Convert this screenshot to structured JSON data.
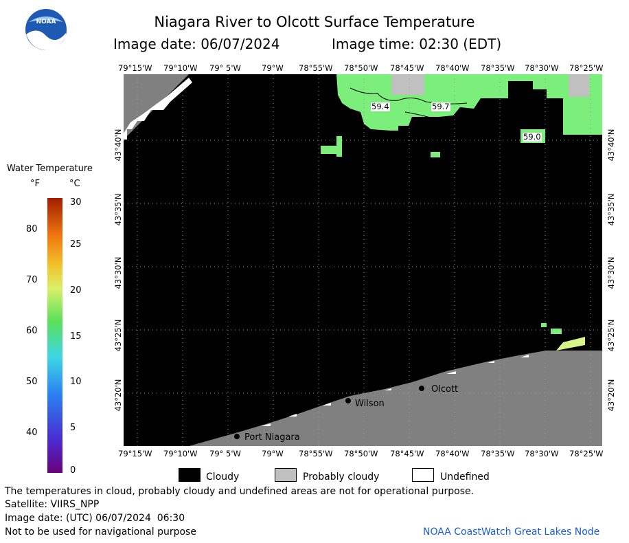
{
  "header": {
    "title": "Niagara River to Olcott Surface Temperature",
    "image_date_label": "Image date: 06/07/2024",
    "image_time_label": "Image time: 02:30 (EDT)"
  },
  "logo": {
    "text": "NOAA"
  },
  "map": {
    "lon_labels": [
      "79°15'W",
      "79°10'W",
      "79° 5'W",
      "79°W",
      "78°55'W",
      "78°50'W",
      "78°45'W",
      "78°40'W",
      "78°35'W",
      "78°30'W",
      "78°25'W"
    ],
    "lat_labels": [
      "43°40'N",
      "43°35'N",
      "43°30'N",
      "43°25'N",
      "43°20'N"
    ],
    "places": [
      "Port Niagara",
      "Wilson",
      "Olcott"
    ],
    "contour_labels": [
      "59.4",
      "59.7",
      "59.0"
    ],
    "colors": {
      "cloudy": "#000000",
      "land": "#808080",
      "probably_cloudy": "#c0c0c0",
      "warm_water": "#7cee7c",
      "yellow_water": "#d8f58a"
    }
  },
  "legend": {
    "title": "Water Temperature",
    "unit_f": "°F",
    "unit_c": "°C",
    "f_ticks": [
      "80",
      "70",
      "60",
      "50",
      "40"
    ],
    "c_ticks": [
      "30",
      "25",
      "20",
      "15",
      "10",
      "5",
      "0"
    ]
  },
  "key": {
    "cloudy": "Cloudy",
    "probably_cloudy": "Probably cloudy",
    "undefined": "Undefined"
  },
  "footer": {
    "disclaimer": "The temperatures in cloud, probably cloudy and undefined areas are not for operational purpose.",
    "satellite": "Satellite: VIIRS_NPP",
    "utc_date": "Image date: (UTC) 06/07/2024  06:30",
    "nav_warning": "Not to be used for navigational purpose",
    "credit": "NOAA CoastWatch Great Lakes Node"
  }
}
